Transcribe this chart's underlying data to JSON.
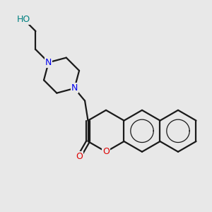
{
  "bg_color": "#e8e8e8",
  "bond_color": "#1a1a1a",
  "N_color": "#0000ee",
  "O_color": "#dd0000",
  "HO_color": "#008080",
  "bond_width": 1.6,
  "figsize": [
    3.0,
    3.0
  ],
  "dpi": 100,
  "xlim": [
    0.0,
    10.0
  ],
  "ylim": [
    0.0,
    10.0
  ]
}
